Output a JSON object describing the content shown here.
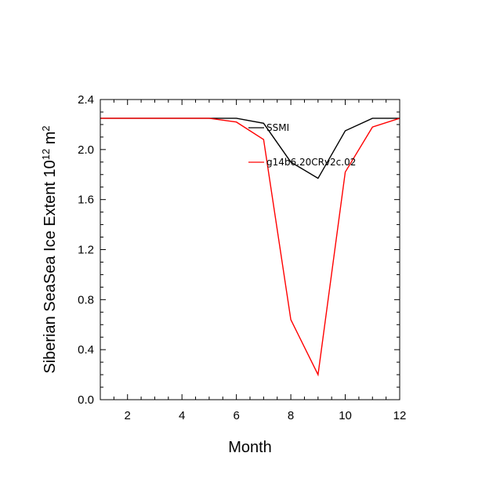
{
  "chart_data": {
    "type": "line",
    "xlabel": "Month",
    "ylabel": {
      "prefix": "Siberian SeaSea Ice Extent 10",
      "superscript": "12",
      "unit": " m",
      "unit_superscript": "2"
    },
    "xlim": [
      1,
      12
    ],
    "ylim": [
      0.0,
      2.4
    ],
    "x_ticks": [
      2,
      4,
      6,
      8,
      10,
      12
    ],
    "y_ticks": [
      0.0,
      0.4,
      0.8,
      1.2,
      1.6,
      2.0,
      2.4
    ],
    "y_tick_labels": [
      "0.0",
      "0.4",
      "0.8",
      "1.2",
      "1.6",
      "2.0",
      "2.4"
    ],
    "x": [
      1,
      2,
      3,
      4,
      5,
      6,
      7,
      8,
      9,
      10,
      11,
      12
    ],
    "grid": false,
    "legend_position": "top-right inside plot",
    "series": [
      {
        "name": "SSMI",
        "color": "#000000",
        "values": [
          2.25,
          2.25,
          2.25,
          2.25,
          2.25,
          2.25,
          2.21,
          1.9,
          1.77,
          2.15,
          2.25,
          2.25
        ]
      },
      {
        "name": "g14b6.20CRv2c.02",
        "color": "#ff0000",
        "values": [
          2.25,
          2.25,
          2.25,
          2.25,
          2.25,
          2.22,
          2.08,
          0.64,
          0.2,
          1.82,
          2.18,
          2.25
        ]
      }
    ]
  }
}
